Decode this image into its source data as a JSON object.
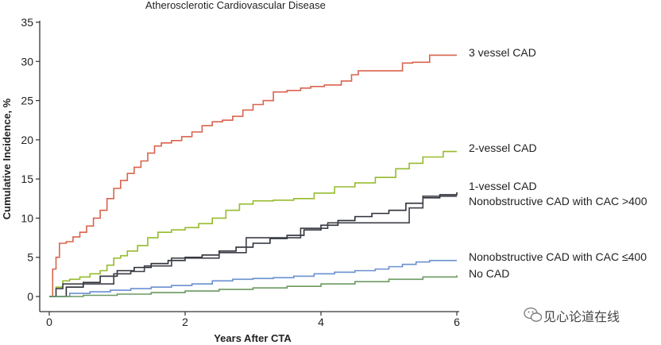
{
  "chart_data": {
    "type": "line",
    "title": "Atherosclerotic Cardiovascular Disease",
    "xlabel": "Years After CTA",
    "ylabel": "Cumulative Incidence, %",
    "xlim": [
      0,
      6
    ],
    "ylim": [
      0,
      35
    ],
    "xticks": [
      0,
      2,
      4,
      6
    ],
    "yticks": [
      0,
      5,
      10,
      15,
      20,
      25,
      30,
      35
    ],
    "grid": false,
    "series": [
      {
        "name": "3 vessel CAD",
        "color": "#d9634d",
        "x": [
          0,
          0.05,
          0.1,
          0.15,
          0.25,
          0.35,
          0.45,
          0.55,
          0.65,
          0.75,
          0.85,
          0.95,
          1.05,
          1.15,
          1.25,
          1.35,
          1.45,
          1.55,
          1.65,
          1.8,
          1.95,
          2.1,
          2.25,
          2.4,
          2.55,
          2.7,
          2.85,
          3.0,
          3.15,
          3.3,
          3.5,
          3.7,
          3.85,
          4.05,
          4.3,
          4.45,
          4.55,
          4.75,
          5.0,
          5.2,
          5.35,
          5.6,
          5.8,
          6.0
        ],
        "y": [
          0,
          3.5,
          5.0,
          6.8,
          7.0,
          7.6,
          8.2,
          9.0,
          10.0,
          11.0,
          12.5,
          13.8,
          14.8,
          15.7,
          16.5,
          17.3,
          18.3,
          19.2,
          19.6,
          19.9,
          20.4,
          21.0,
          21.8,
          22.3,
          22.5,
          23.0,
          23.8,
          24.5,
          25.0,
          26.1,
          26.3,
          26.6,
          26.8,
          27.0,
          27.5,
          28.3,
          28.8,
          28.8,
          28.8,
          29.8,
          29.9,
          30.8,
          30.8,
          30.8
        ]
      },
      {
        "name": "2-vessel CAD",
        "color": "#96bb2e",
        "x": [
          0,
          0.1,
          0.2,
          0.3,
          0.45,
          0.6,
          0.75,
          0.85,
          0.95,
          1.05,
          1.15,
          1.3,
          1.45,
          1.6,
          1.8,
          2.0,
          2.2,
          2.4,
          2.6,
          2.8,
          3.0,
          3.3,
          3.6,
          3.9,
          4.2,
          4.5,
          4.8,
          5.1,
          5.3,
          5.5,
          5.8,
          6.0
        ],
        "y": [
          0,
          1.2,
          2.0,
          2.2,
          2.5,
          2.9,
          3.3,
          4.0,
          4.9,
          5.2,
          5.8,
          6.5,
          7.5,
          8.2,
          8.5,
          8.8,
          9.3,
          10.0,
          11.0,
          11.8,
          12.2,
          12.3,
          12.5,
          13.2,
          14.0,
          14.5,
          15.2,
          16.3,
          17.0,
          17.8,
          18.5,
          18.5
        ]
      },
      {
        "name": "1-vessel CAD",
        "color": "#2c2f38",
        "x": [
          0,
          0.25,
          0.5,
          0.75,
          1.0,
          1.25,
          1.5,
          1.75,
          2.0,
          2.25,
          2.5,
          2.75,
          3.0,
          3.25,
          3.5,
          3.75,
          4.0,
          4.25,
          4.5,
          4.75,
          5.0,
          5.25,
          5.5,
          5.75,
          6.0
        ],
        "y": [
          0,
          1.2,
          1.8,
          2.6,
          3.3,
          3.7,
          4.2,
          4.6,
          5.0,
          5.3,
          5.8,
          6.3,
          6.8,
          7.4,
          7.8,
          8.5,
          9.1,
          9.7,
          10.2,
          10.6,
          11.0,
          11.9,
          12.6,
          13.0,
          13.3
        ]
      },
      {
        "name": "Nonobstructive CAD with CAC >400",
        "color": "#3d3f46",
        "x": [
          0,
          0.1,
          0.2,
          0.4,
          0.6,
          0.8,
          0.95,
          1.2,
          1.4,
          1.6,
          1.8,
          2.0,
          2.3,
          2.5,
          2.7,
          2.9,
          3.1,
          3.3,
          3.5,
          3.7,
          3.9,
          4.1,
          4.3,
          4.6,
          4.9,
          5.2,
          5.3,
          5.5,
          5.7,
          6.0
        ],
        "y": [
          0,
          1.0,
          1.6,
          1.6,
          1.6,
          1.6,
          2.9,
          3.2,
          3.9,
          3.9,
          4.9,
          4.9,
          4.9,
          5.6,
          5.6,
          7.5,
          7.5,
          7.5,
          7.5,
          8.7,
          8.7,
          9.4,
          9.4,
          9.4,
          9.4,
          9.4,
          11.3,
          12.8,
          12.8,
          12.8
        ]
      },
      {
        "name": "Nonobstructive CAD with CAC ≤400",
        "color": "#6a8fcf",
        "x": [
          0,
          0.3,
          0.6,
          0.9,
          1.2,
          1.5,
          1.8,
          2.1,
          2.4,
          2.7,
          3.0,
          3.3,
          3.6,
          3.9,
          4.2,
          4.5,
          4.8,
          5.0,
          5.2,
          5.4,
          5.6,
          6.0
        ],
        "y": [
          0,
          0.4,
          0.6,
          0.8,
          1.0,
          1.2,
          1.4,
          1.6,
          2.0,
          2.2,
          2.3,
          2.4,
          2.6,
          2.9,
          3.1,
          3.3,
          3.5,
          3.8,
          4.1,
          4.4,
          4.6,
          4.6
        ]
      },
      {
        "name": "No CAD",
        "color": "#6b9961",
        "x": [
          0,
          0.5,
          1.0,
          1.5,
          2.0,
          2.5,
          3.0,
          3.5,
          4.0,
          4.5,
          5.0,
          5.5,
          6.0
        ],
        "y": [
          0,
          0.15,
          0.3,
          0.5,
          0.7,
          0.9,
          1.1,
          1.3,
          1.6,
          1.9,
          2.2,
          2.5,
          2.7
        ]
      }
    ]
  },
  "watermark": {
    "text": "见心论道在线",
    "icon": "wechat-icon"
  }
}
